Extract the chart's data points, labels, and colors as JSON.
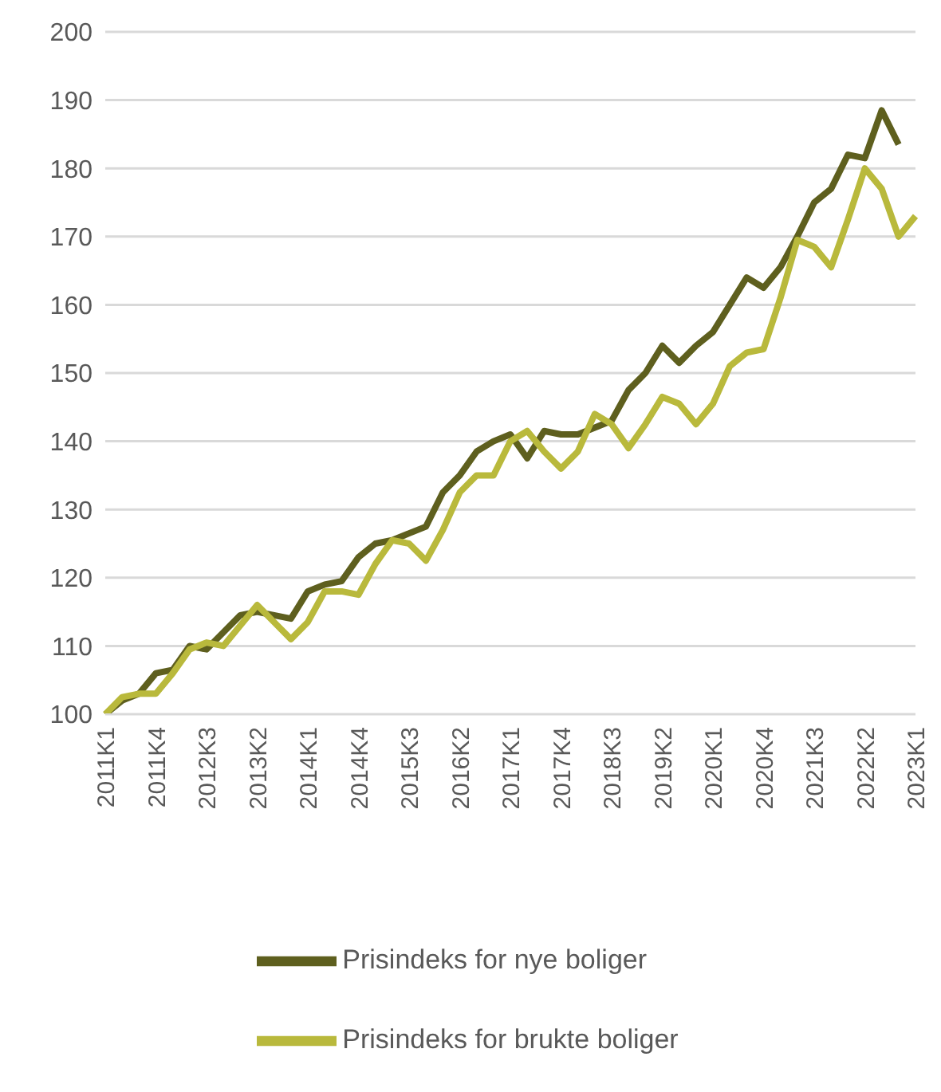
{
  "chart_data": {
    "type": "line",
    "categories": [
      "2011K1",
      null,
      null,
      "2011K4",
      null,
      null,
      "2012K3",
      null,
      null,
      "2013K2",
      null,
      null,
      "2014K1",
      null,
      null,
      "2014K4",
      null,
      null,
      "2015K3",
      null,
      null,
      "2016K2",
      null,
      null,
      "2017K1",
      null,
      null,
      "2017K4",
      null,
      null,
      "2018K3",
      null,
      null,
      "2019K2",
      null,
      null,
      "2020K1",
      null,
      null,
      "2020K4",
      null,
      null,
      "2021K3",
      null,
      null,
      "2022K2",
      null,
      null,
      "2023K1"
    ],
    "series": [
      {
        "name": "Prisindeks for nye boliger",
        "color": "#5e5f1e",
        "values": [
          100,
          102,
          103,
          106,
          106.5,
          110,
          109.5,
          112,
          114.5,
          115,
          114.5,
          114,
          118,
          119,
          119.5,
          123,
          125,
          125.5,
          126.5,
          127.5,
          132.5,
          135,
          138.5,
          140,
          141,
          137.5,
          141.5,
          141,
          141,
          142,
          143,
          147.5,
          150,
          154,
          151.5,
          154,
          156,
          160,
          164,
          162.5,
          165.5,
          170,
          175,
          177,
          182,
          181.5,
          188.5,
          183.5,
          null
        ]
      },
      {
        "name": "Prisindeks for brukte boliger",
        "color": "#b9b93c",
        "values": [
          100,
          102.5,
          103,
          103,
          106,
          109.5,
          110.5,
          110,
          113,
          116,
          113.5,
          111,
          113.5,
          118,
          118,
          117.5,
          122,
          125.5,
          125,
          122.5,
          127,
          132.5,
          135,
          135,
          140,
          141.5,
          138.5,
          136,
          138.5,
          144,
          142.5,
          139,
          142.5,
          146.5,
          145.5,
          142.5,
          145.5,
          151,
          153,
          153.5,
          161,
          169.5,
          168.5,
          165.5,
          172.5,
          180,
          177,
          170,
          173
        ]
      }
    ],
    "ylim": [
      100,
      200
    ],
    "yticks": [
      100,
      110,
      120,
      130,
      140,
      150,
      160,
      170,
      180,
      190,
      200
    ],
    "grid": "y",
    "legend": "bottom",
    "marker": "none",
    "line_style": "solid"
  }
}
